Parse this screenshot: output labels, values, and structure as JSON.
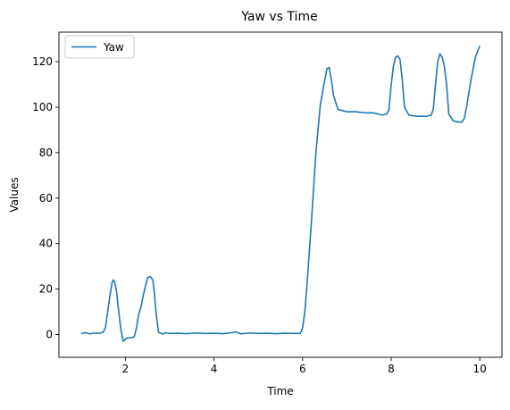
{
  "chart_data": {
    "type": "line",
    "title": "Yaw vs Time",
    "xlabel": "Time",
    "ylabel": "Values",
    "xlim": [
      0.5,
      10.5
    ],
    "ylim": [
      -10,
      133
    ],
    "xticks": [
      2,
      4,
      6,
      8,
      10
    ],
    "yticks": [
      0,
      20,
      40,
      60,
      80,
      100,
      120
    ],
    "grid": false,
    "legend": {
      "position": "top-left",
      "entries": [
        "Yaw"
      ]
    },
    "series": [
      {
        "name": "Yaw",
        "color": "#1f77b4",
        "x": [
          1.0,
          1.1,
          1.2,
          1.3,
          1.4,
          1.5,
          1.55,
          1.6,
          1.65,
          1.7,
          1.73,
          1.76,
          1.8,
          1.85,
          1.9,
          1.95,
          2.0,
          2.05,
          2.1,
          2.2,
          2.25,
          2.3,
          2.35,
          2.4,
          2.45,
          2.5,
          2.55,
          2.58,
          2.62,
          2.65,
          2.7,
          2.75,
          2.8,
          2.85,
          2.9,
          3.0,
          3.2,
          3.4,
          3.6,
          3.8,
          4.0,
          4.2,
          4.4,
          4.5,
          4.6,
          4.8,
          5.0,
          5.2,
          5.4,
          5.6,
          5.8,
          5.95,
          6.0,
          6.05,
          6.1,
          6.2,
          6.3,
          6.4,
          6.5,
          6.55,
          6.6,
          6.65,
          6.7,
          6.8,
          6.9,
          7.0,
          7.2,
          7.4,
          7.6,
          7.8,
          7.9,
          7.95,
          8.0,
          8.05,
          8.1,
          8.15,
          8.2,
          8.25,
          8.3,
          8.4,
          8.6,
          8.8,
          8.9,
          8.95,
          9.0,
          9.05,
          9.1,
          9.15,
          9.2,
          9.25,
          9.3,
          9.4,
          9.5,
          9.6,
          9.65,
          9.7,
          9.8,
          9.9,
          10.0
        ],
        "values": [
          0.5,
          0.8,
          0.3,
          0.7,
          0.5,
          1.0,
          3.0,
          10.0,
          17.0,
          23.0,
          24.0,
          23.0,
          19.0,
          10.0,
          2.0,
          -3.0,
          -2.0,
          -1.5,
          -1.5,
          -1.0,
          3.0,
          9.0,
          12.0,
          17.0,
          21.0,
          25.0,
          25.5,
          25.0,
          24.0,
          19.0,
          8.0,
          1.0,
          0.5,
          0.3,
          0.8,
          0.5,
          0.6,
          0.4,
          0.7,
          0.5,
          0.6,
          0.4,
          0.8,
          1.2,
          0.3,
          0.7,
          0.5,
          0.6,
          0.4,
          0.6,
          0.5,
          0.5,
          3.0,
          10.0,
          22.0,
          50.0,
          80.0,
          101.0,
          112.0,
          117.0,
          117.5,
          112.0,
          105.0,
          99.0,
          98.5,
          98.0,
          98.0,
          97.5,
          97.5,
          96.5,
          97.0,
          99.0,
          110.0,
          118.0,
          122.0,
          122.5,
          121.0,
          112.0,
          100.0,
          96.5,
          96.0,
          96.0,
          96.5,
          99.0,
          110.0,
          120.0,
          123.5,
          122.0,
          118.0,
          110.0,
          97.0,
          94.0,
          93.5,
          93.5,
          95.0,
          100.0,
          112.0,
          122.0,
          127.0
        ]
      }
    ]
  }
}
